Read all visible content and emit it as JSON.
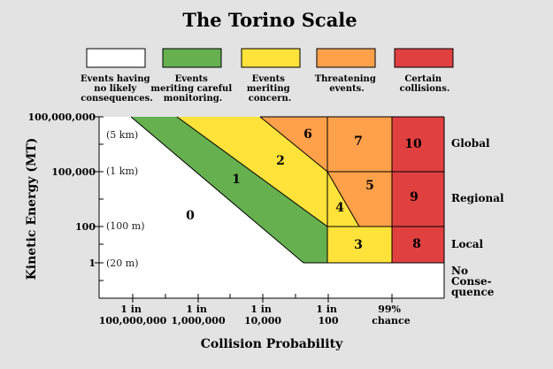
{
  "title": "The Torino Scale",
  "colors": {
    "white": "#ffffff",
    "green": "#66b050",
    "yellow": "#ffe23a",
    "orange": "#ffa04a",
    "red": "#e04040"
  },
  "legend": [
    {
      "color": "white",
      "lines": [
        "Events having",
        "no likely",
        "consequences."
      ]
    },
    {
      "color": "green",
      "lines": [
        "Events",
        "meriting careful",
        "monitoring."
      ]
    },
    {
      "color": "yellow",
      "lines": [
        "Events",
        "meriting",
        "concern."
      ]
    },
    {
      "color": "orange",
      "lines": [
        "Threatening",
        "events."
      ]
    },
    {
      "color": "red",
      "lines": [
        "Certain",
        "collisions."
      ]
    }
  ],
  "y_axis": {
    "label": "Kinetic Energy (MT)",
    "ticks": [
      {
        "value": "100,000,000",
        "size": "(5 km)"
      },
      {
        "value": "100,000",
        "size": "(1 km)"
      },
      {
        "value": "100",
        "size": "(100 m)"
      },
      {
        "value": "1",
        "size": "(20 m)"
      }
    ]
  },
  "x_axis": {
    "label": "Collision Probability",
    "ticks": [
      {
        "lines": [
          "1 in",
          "100,000,000"
        ]
      },
      {
        "lines": [
          "1 in",
          "1,000,000"
        ]
      },
      {
        "lines": [
          "1 in",
          "10,000"
        ]
      },
      {
        "lines": [
          "1 in",
          "100"
        ]
      },
      {
        "lines": [
          "99%",
          "chance"
        ]
      }
    ]
  },
  "levels": [
    "0",
    "1",
    "2",
    "3",
    "4",
    "5",
    "6",
    "7",
    "8",
    "9",
    "10"
  ],
  "right_labels": [
    "Global",
    "Regional",
    "Local",
    "No",
    "Conse-",
    "quence"
  ]
}
